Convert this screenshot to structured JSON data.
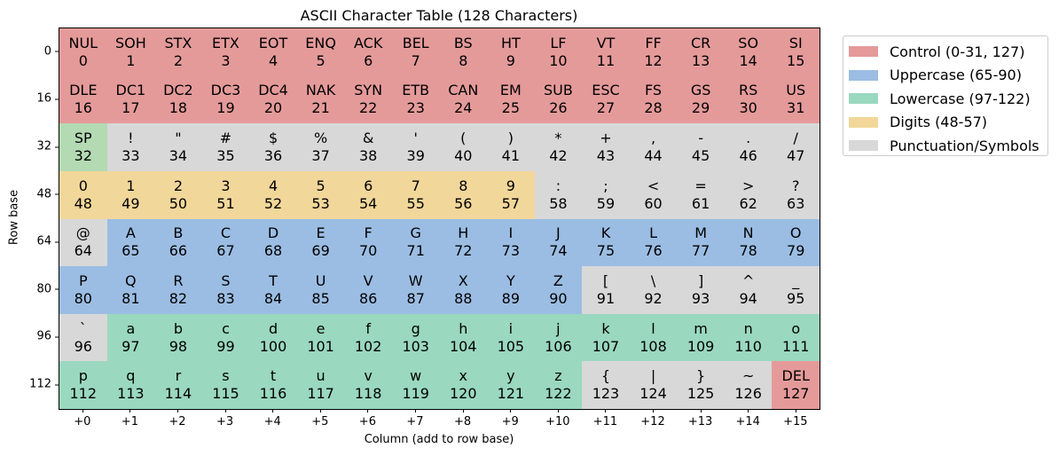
{
  "chart_data": {
    "type": "table",
    "title": "ASCII Character Table (128 Characters)",
    "xlabel": "Column (add to row base)",
    "ylabel": "Row base",
    "x_ticks": [
      "+0",
      "+1",
      "+2",
      "+3",
      "+4",
      "+5",
      "+6",
      "+7",
      "+8",
      "+9",
      "+10",
      "+11",
      "+12",
      "+13",
      "+14",
      "+15"
    ],
    "y_ticks": [
      "0",
      "16",
      "32",
      "48",
      "64",
      "80",
      "96",
      "112"
    ],
    "legend": [
      {
        "label": "Control (0-31, 127)",
        "color": "#e59a9a"
      },
      {
        "label": "Uppercase (65-90)",
        "color": "#9bbde3"
      },
      {
        "label": "Lowercase (97-122)",
        "color": "#9ad8bf"
      },
      {
        "label": "Digits (48-57)",
        "color": "#f2d79a"
      },
      {
        "label": "Punctuation/Symbols",
        "color": "#d8d8d8"
      }
    ],
    "colors": {
      "control": "#e59a9a",
      "upper": "#9bbde3",
      "lower": "#9ad8bf",
      "digit": "#f2d79a",
      "punct": "#d8d8d8",
      "space": "#b3dab3"
    },
    "cells": [
      [
        "NUL",
        0,
        "control"
      ],
      [
        "SOH",
        1,
        "control"
      ],
      [
        "STX",
        2,
        "control"
      ],
      [
        "ETX",
        3,
        "control"
      ],
      [
        "EOT",
        4,
        "control"
      ],
      [
        "ENQ",
        5,
        "control"
      ],
      [
        "ACK",
        6,
        "control"
      ],
      [
        "BEL",
        7,
        "control"
      ],
      [
        "BS",
        8,
        "control"
      ],
      [
        "HT",
        9,
        "control"
      ],
      [
        "LF",
        10,
        "control"
      ],
      [
        "VT",
        11,
        "control"
      ],
      [
        "FF",
        12,
        "control"
      ],
      [
        "CR",
        13,
        "control"
      ],
      [
        "SO",
        14,
        "control"
      ],
      [
        "SI",
        15,
        "control"
      ],
      [
        "DLE",
        16,
        "control"
      ],
      [
        "DC1",
        17,
        "control"
      ],
      [
        "DC2",
        18,
        "control"
      ],
      [
        "DC3",
        19,
        "control"
      ],
      [
        "DC4",
        20,
        "control"
      ],
      [
        "NAK",
        21,
        "control"
      ],
      [
        "SYN",
        22,
        "control"
      ],
      [
        "ETB",
        23,
        "control"
      ],
      [
        "CAN",
        24,
        "control"
      ],
      [
        "EM",
        25,
        "control"
      ],
      [
        "SUB",
        26,
        "control"
      ],
      [
        "ESC",
        27,
        "control"
      ],
      [
        "FS",
        28,
        "control"
      ],
      [
        "GS",
        29,
        "control"
      ],
      [
        "RS",
        30,
        "control"
      ],
      [
        "US",
        31,
        "control"
      ],
      [
        "SP",
        32,
        "space"
      ],
      [
        "!",
        33,
        "punct"
      ],
      [
        "\"",
        34,
        "punct"
      ],
      [
        "#",
        35,
        "punct"
      ],
      [
        "$",
        36,
        "punct"
      ],
      [
        "%",
        37,
        "punct"
      ],
      [
        "&",
        38,
        "punct"
      ],
      [
        "'",
        39,
        "punct"
      ],
      [
        "(",
        40,
        "punct"
      ],
      [
        ")",
        41,
        "punct"
      ],
      [
        "*",
        42,
        "punct"
      ],
      [
        "+",
        43,
        "punct"
      ],
      [
        ",",
        44,
        "punct"
      ],
      [
        "-",
        45,
        "punct"
      ],
      [
        ".",
        46,
        "punct"
      ],
      [
        "/",
        47,
        "punct"
      ],
      [
        "0",
        48,
        "digit"
      ],
      [
        "1",
        49,
        "digit"
      ],
      [
        "2",
        50,
        "digit"
      ],
      [
        "3",
        51,
        "digit"
      ],
      [
        "4",
        52,
        "digit"
      ],
      [
        "5",
        53,
        "digit"
      ],
      [
        "6",
        54,
        "digit"
      ],
      [
        "7",
        55,
        "digit"
      ],
      [
        "8",
        56,
        "digit"
      ],
      [
        "9",
        57,
        "digit"
      ],
      [
        ":",
        58,
        "punct"
      ],
      [
        ";",
        59,
        "punct"
      ],
      [
        "<",
        60,
        "punct"
      ],
      [
        "=",
        61,
        "punct"
      ],
      [
        ">",
        62,
        "punct"
      ],
      [
        "?",
        63,
        "punct"
      ],
      [
        "@",
        64,
        "punct"
      ],
      [
        "A",
        65,
        "upper"
      ],
      [
        "B",
        66,
        "upper"
      ],
      [
        "C",
        67,
        "upper"
      ],
      [
        "D",
        68,
        "upper"
      ],
      [
        "E",
        69,
        "upper"
      ],
      [
        "F",
        70,
        "upper"
      ],
      [
        "G",
        71,
        "upper"
      ],
      [
        "H",
        72,
        "upper"
      ],
      [
        "I",
        73,
        "upper"
      ],
      [
        "J",
        74,
        "upper"
      ],
      [
        "K",
        75,
        "upper"
      ],
      [
        "L",
        76,
        "upper"
      ],
      [
        "M",
        77,
        "upper"
      ],
      [
        "N",
        78,
        "upper"
      ],
      [
        "O",
        79,
        "upper"
      ],
      [
        "P",
        80,
        "upper"
      ],
      [
        "Q",
        81,
        "upper"
      ],
      [
        "R",
        82,
        "upper"
      ],
      [
        "S",
        83,
        "upper"
      ],
      [
        "T",
        84,
        "upper"
      ],
      [
        "U",
        85,
        "upper"
      ],
      [
        "V",
        86,
        "upper"
      ],
      [
        "W",
        87,
        "upper"
      ],
      [
        "X",
        88,
        "upper"
      ],
      [
        "Y",
        89,
        "upper"
      ],
      [
        "Z",
        90,
        "upper"
      ],
      [
        "[",
        91,
        "punct"
      ],
      [
        "\\",
        92,
        "punct"
      ],
      [
        "]",
        93,
        "punct"
      ],
      [
        "^",
        94,
        "punct"
      ],
      [
        "_",
        95,
        "punct"
      ],
      [
        "`",
        96,
        "punct"
      ],
      [
        "a",
        97,
        "lower"
      ],
      [
        "b",
        98,
        "lower"
      ],
      [
        "c",
        99,
        "lower"
      ],
      [
        "d",
        100,
        "lower"
      ],
      [
        "e",
        101,
        "lower"
      ],
      [
        "f",
        102,
        "lower"
      ],
      [
        "g",
        103,
        "lower"
      ],
      [
        "h",
        104,
        "lower"
      ],
      [
        "i",
        105,
        "lower"
      ],
      [
        "j",
        106,
        "lower"
      ],
      [
        "k",
        107,
        "lower"
      ],
      [
        "l",
        108,
        "lower"
      ],
      [
        "m",
        109,
        "lower"
      ],
      [
        "n",
        110,
        "lower"
      ],
      [
        "o",
        111,
        "lower"
      ],
      [
        "p",
        112,
        "lower"
      ],
      [
        "q",
        113,
        "lower"
      ],
      [
        "r",
        114,
        "lower"
      ],
      [
        "s",
        115,
        "lower"
      ],
      [
        "t",
        116,
        "lower"
      ],
      [
        "u",
        117,
        "lower"
      ],
      [
        "v",
        118,
        "lower"
      ],
      [
        "w",
        119,
        "lower"
      ],
      [
        "x",
        120,
        "lower"
      ],
      [
        "y",
        121,
        "lower"
      ],
      [
        "z",
        122,
        "lower"
      ],
      [
        "{",
        123,
        "punct"
      ],
      [
        "|",
        124,
        "punct"
      ],
      [
        "}",
        125,
        "punct"
      ],
      [
        "~",
        126,
        "punct"
      ],
      [
        "DEL",
        127,
        "control"
      ]
    ]
  }
}
